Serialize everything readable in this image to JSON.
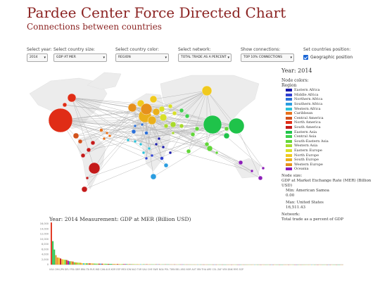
{
  "header": {
    "title": "Pardee Center Force Directed Chart",
    "subtitle": "Connections between countries"
  },
  "controls": {
    "year": {
      "label": "Select year:",
      "value": "2014"
    },
    "size": {
      "label": "Select country size:",
      "value": "GDP AT MER"
    },
    "color": {
      "label": "Select country color:",
      "value": "REGION"
    },
    "network": {
      "label": "Select network:",
      "value": "TOTAL TRADE AS A PERCENT"
    },
    "connections": {
      "label": "Show connections:",
      "value": "TOP 10% CONNECTIONS"
    },
    "position": {
      "label": "Set countries position:",
      "checkbox_label": "Geographic position",
      "checked": true
    }
  },
  "sidebar": {
    "year": "Year: 2014",
    "colors_title": "Node colors:",
    "colors_sub": "Region",
    "legend": [
      {
        "label": "Eastern Africa",
        "color": "#1a1aa8"
      },
      {
        "label": "Middle Africa",
        "color": "#2f3fd0"
      },
      {
        "label": "Northern Africa",
        "color": "#2a6fd8"
      },
      {
        "label": "Southern Africa",
        "color": "#2b9de0"
      },
      {
        "label": "Western Africa",
        "color": "#2ac1d8"
      },
      {
        "label": "Caribbean",
        "color": "#e8721e"
      },
      {
        "label": "Central America",
        "color": "#d2521c"
      },
      {
        "label": "North America",
        "color": "#e02d16"
      },
      {
        "label": "South America",
        "color": "#c41a1a"
      },
      {
        "label": "Eastern Asia",
        "color": "#1fc34a"
      },
      {
        "label": "Central Asia",
        "color": "#3dd14c"
      },
      {
        "label": "South-Eastern Asia",
        "color": "#62d63a"
      },
      {
        "label": "Western Asia",
        "color": "#a8da2c"
      },
      {
        "label": "Eastern Europe",
        "color": "#d8e02a"
      },
      {
        "label": "North Europe",
        "color": "#f0c91e"
      },
      {
        "label": "South Europe",
        "color": "#eab01c"
      },
      {
        "label": "Western Europe",
        "color": "#e6901c"
      },
      {
        "label": "Oceania",
        "color": "#8c1eb8"
      }
    ],
    "size_title": "Node size:",
    "size_measure": "GDP at Market Exchange Rate (MER) (Billion USD)",
    "min_label": "Min: American Samoa",
    "min_value": "0.00",
    "max_label": "Max: United States",
    "max_value": "16,511.43",
    "network_title": "Network:",
    "network_value": "Total trade as a percent of GDP"
  },
  "bottom": {
    "title": "Year: 2014    Measurement: GDP at MER (Billion USD)",
    "x_labels": "USA CHN JPN DEU FRA GBR BRA ITA RUS IND CAN AUS KOR ESP MEX IDN NLD TUR SAU CHE SWE NGA POL TWN BEL ARG NOR AUT IRN THA ARE COL ZAF VEN DNK MYS SGP"
  },
  "chart_data": {
    "type": "bar",
    "title": "GDP at MER (Billion USD)",
    "ylim": [
      0,
      16000
    ],
    "yticks": [
      "16,000",
      "14,000",
      "12,000",
      "10,000",
      "8,000",
      "6,000",
      "4,000",
      "2,000",
      "0"
    ],
    "categories": [
      "USA",
      "CHN",
      "JPN",
      "DEU",
      "FRA",
      "GBR",
      "BRA",
      "ITA",
      "RUS",
      "IND",
      "CAN",
      "AUS",
      "KOR",
      "ESP",
      "MEX",
      "IDN",
      "NLD",
      "TUR",
      "SAU",
      "CHE",
      "SWE",
      "NGA",
      "POL",
      "TWN",
      "BEL",
      "ARG",
      "NOR",
      "AUT",
      "IRN",
      "THA",
      "ARE",
      "COL",
      "ZAF",
      "VEN",
      "DNK",
      "MYS",
      "SGP"
    ],
    "values": [
      16511,
      9200,
      5900,
      3700,
      2800,
      2700,
      2400,
      2100,
      2000,
      1900,
      1800,
      1500,
      1300,
      1300,
      1200,
      900,
      850,
      800,
      750,
      700,
      550,
      520,
      500,
      500,
      480,
      470,
      460,
      420,
      400,
      380,
      370,
      360,
      350,
      340,
      330,
      320,
      300
    ],
    "colors": [
      "#e02d16",
      "#1fc34a",
      "#1fc34a",
      "#e6901c",
      "#e6901c",
      "#f0c91e",
      "#c41a1a",
      "#eab01c",
      "#d8e02a",
      "#62d63a",
      "#e02d16",
      "#8c1eb8",
      "#1fc34a",
      "#eab01c",
      "#d2521c",
      "#62d63a",
      "#e6901c",
      "#a8da2c",
      "#a8da2c",
      "#e6901c",
      "#f0c91e",
      "#2ac1d8",
      "#d8e02a",
      "#1fc34a",
      "#e6901c",
      "#c41a1a",
      "#f0c91e",
      "#e6901c",
      "#62d63a",
      "#62d63a",
      "#a8da2c",
      "#c41a1a",
      "#2b9de0",
      "#c41a1a",
      "#f0c91e",
      "#62d63a",
      "#62d63a"
    ]
  }
}
